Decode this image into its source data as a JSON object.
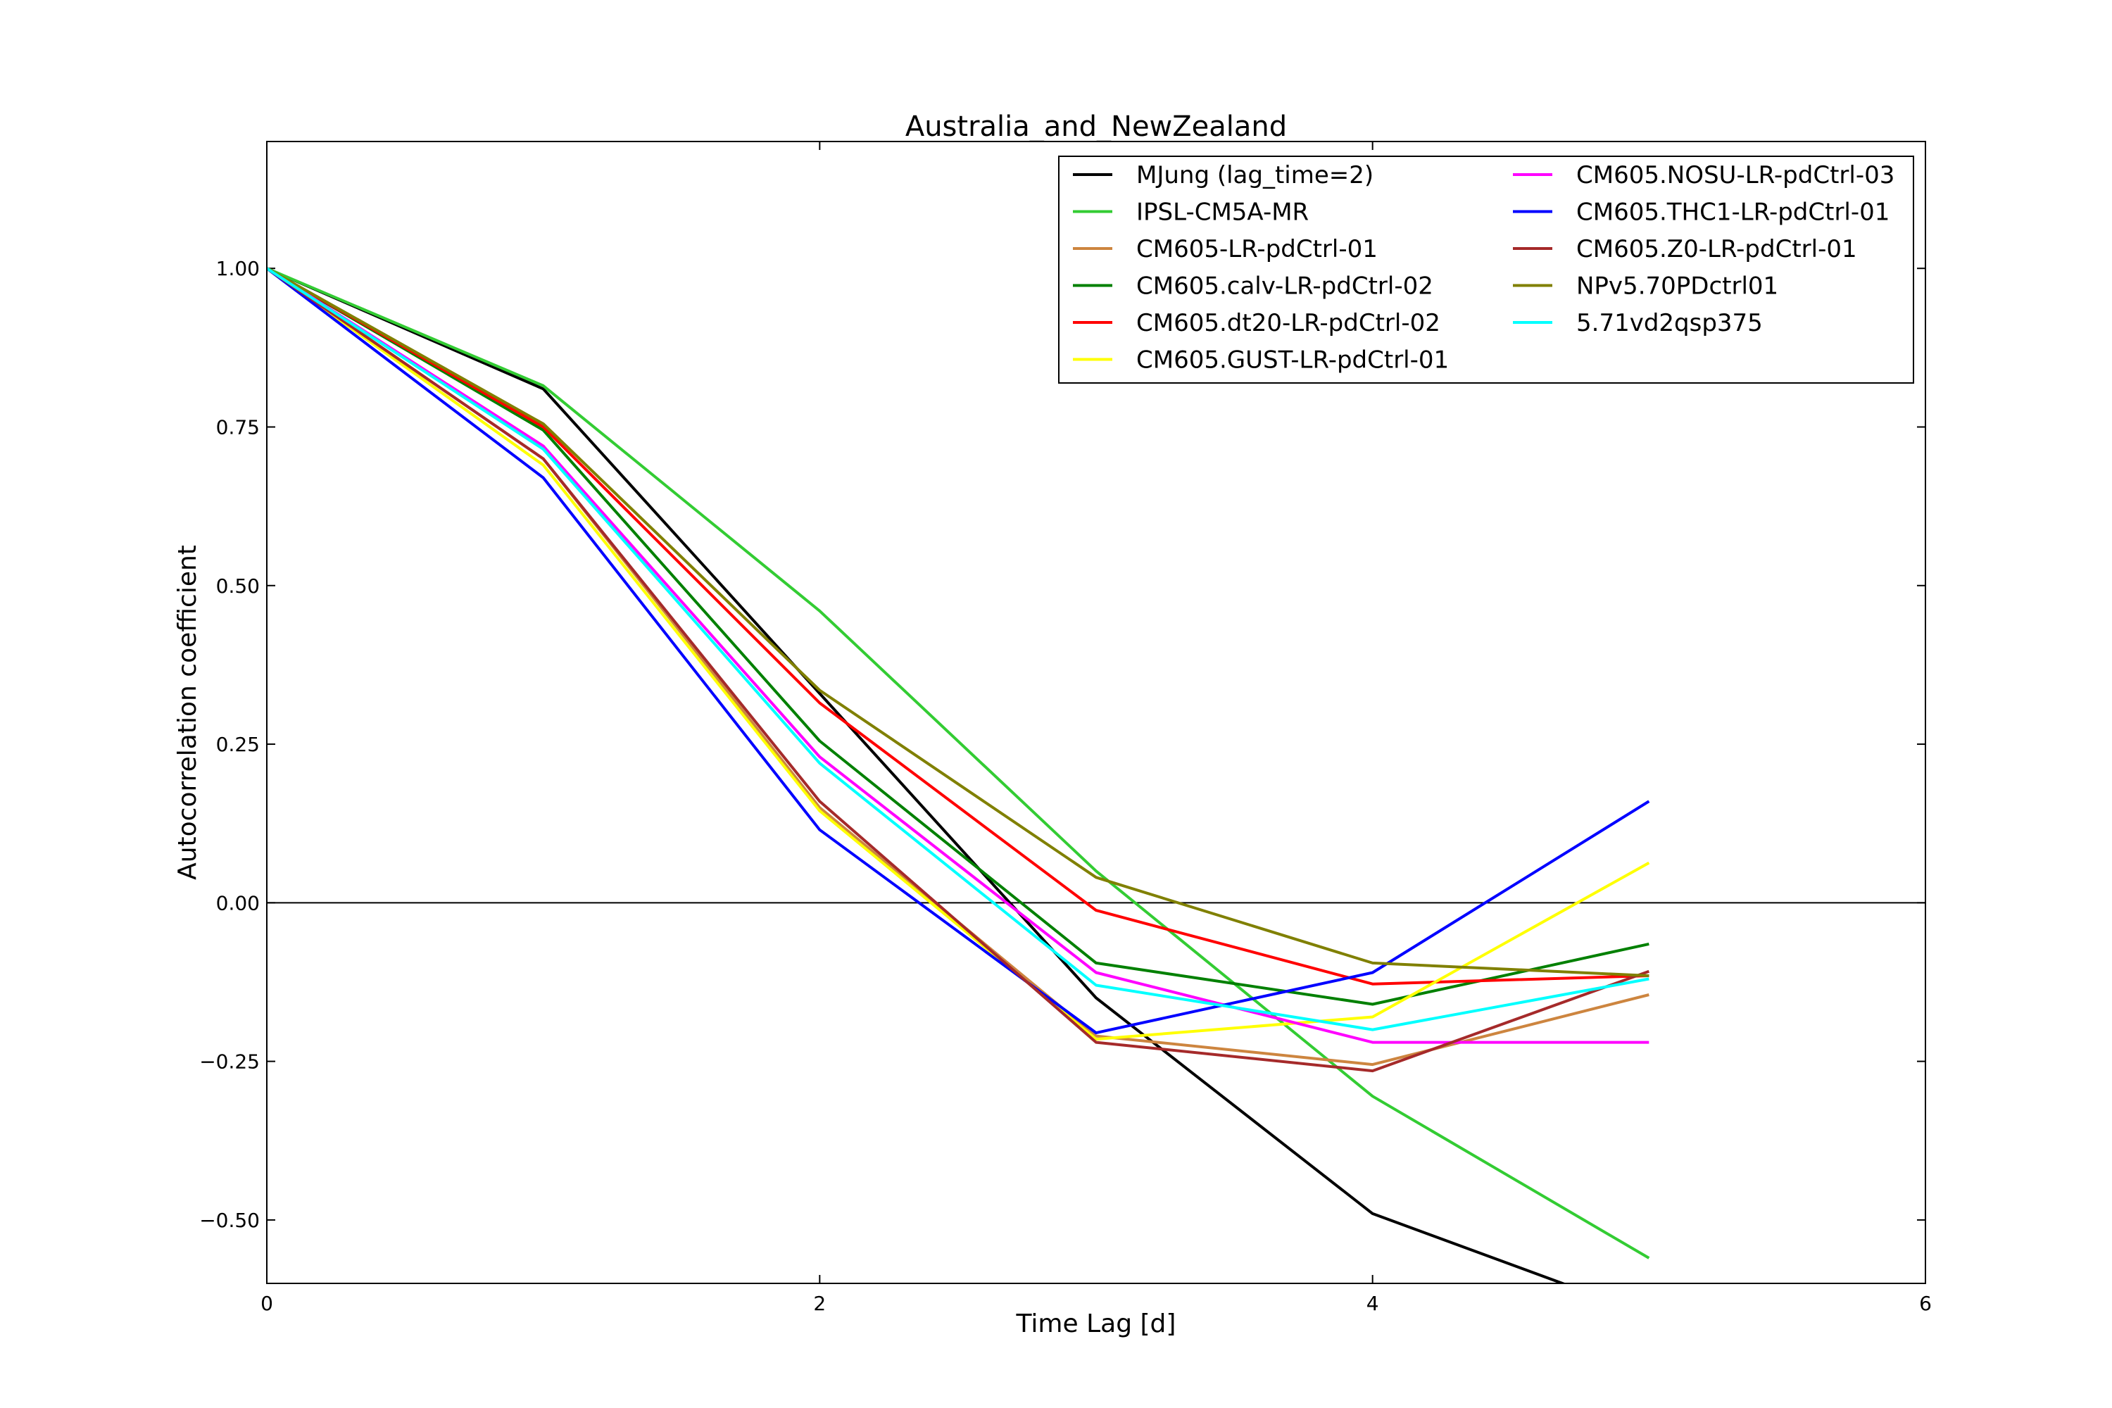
{
  "chart_data": {
    "type": "line",
    "title": "Australia_and_NewZealand",
    "xlabel": "Time Lag [d]",
    "ylabel": "Autocorrelation coefficient",
    "xlim": [
      0,
      6
    ],
    "ylim": [
      -0.6,
      1.2
    ],
    "x_ticks": [
      0,
      2,
      4,
      6
    ],
    "x_tick_labels": [
      "0",
      "2",
      "4",
      "6"
    ],
    "y_ticks": [
      -0.5,
      -0.25,
      0,
      0.25,
      0.5,
      0.75,
      1.0
    ],
    "y_tick_labels": [
      "−0.50",
      "−0.25",
      "0.00",
      "0.25",
      "0.50",
      "0.75",
      "1.00"
    ],
    "reference_line_y": 0,
    "grid": false,
    "legend_position": "top-right",
    "legend_columns": 2,
    "x": [
      0,
      1,
      2,
      3,
      4,
      5
    ],
    "series": [
      {
        "name": "MJung (lag_time=2)",
        "color": "#000000",
        "values": [
          1.0,
          0.81,
          0.33,
          -0.15,
          -0.49,
          -0.65
        ]
      },
      {
        "name": "IPSL-CM5A-MR",
        "color": "#33cc33",
        "values": [
          1.0,
          0.815,
          0.46,
          0.05,
          -0.305,
          -0.56
        ]
      },
      {
        "name": "CM605-LR-pdCtrl-01",
        "color": "#cd853f",
        "values": [
          1.0,
          0.7,
          0.15,
          -0.21,
          -0.255,
          -0.145
        ]
      },
      {
        "name": "CM605.calv-LR-pdCtrl-02",
        "color": "#008000",
        "values": [
          1.0,
          0.745,
          0.255,
          -0.095,
          -0.16,
          -0.065
        ]
      },
      {
        "name": "CM605.dt20-LR-pdCtrl-02",
        "color": "#ff0000",
        "values": [
          1.0,
          0.75,
          0.315,
          -0.012,
          -0.128,
          -0.115
        ]
      },
      {
        "name": "CM605.GUST-LR-pdCtrl-01",
        "color": "#ffff00",
        "values": [
          1.0,
          0.69,
          0.145,
          -0.215,
          -0.18,
          0.063
        ]
      },
      {
        "name": "CM605.NOSU-LR-pdCtrl-03",
        "color": "#ff00ff",
        "values": [
          1.0,
          0.72,
          0.23,
          -0.11,
          -0.22,
          -0.22
        ]
      },
      {
        "name": "CM605.THC1-LR-pdCtrl-01",
        "color": "#0000ff",
        "values": [
          1.0,
          0.67,
          0.115,
          -0.205,
          -0.11,
          0.16
        ]
      },
      {
        "name": "CM605.Z0-LR-pdCtrl-01",
        "color": "#a52a2a",
        "values": [
          1.0,
          0.7,
          0.16,
          -0.22,
          -0.265,
          -0.108
        ]
      },
      {
        "name": "NPv5.70PDctrl01",
        "color": "#808000",
        "values": [
          1.0,
          0.755,
          0.335,
          0.04,
          -0.095,
          -0.115
        ]
      },
      {
        "name": "5.71vd2qsp375",
        "color": "#00ffff",
        "values": [
          1.0,
          0.715,
          0.22,
          -0.13,
          -0.2,
          -0.12
        ]
      }
    ]
  }
}
